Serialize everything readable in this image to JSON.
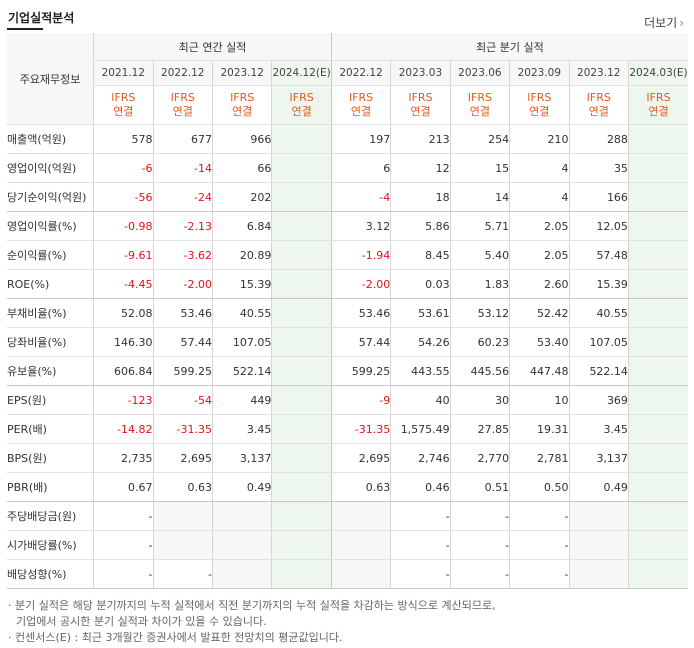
{
  "header": {
    "title": "기업실적분석",
    "more": "더보기",
    "more_arrow": "›"
  },
  "table": {
    "row_header": "주요재무정보",
    "sections": {
      "annual": "최근 연간 실적",
      "quarter": "최근 분기 실적"
    },
    "periods": [
      "2021.12",
      "2022.12",
      "2023.12",
      "2024.12(E)",
      "2022.12",
      "2023.03",
      "2023.06",
      "2023.09",
      "2023.12",
      "2024.03(E)"
    ],
    "ifrs": {
      "top": "IFRS",
      "bottom": "연결"
    },
    "rows": [
      {
        "label": "매출액(억원)",
        "values": [
          "578",
          "677",
          "966",
          "",
          "197",
          "213",
          "254",
          "210",
          "288",
          ""
        ]
      },
      {
        "label": "영업이익(억원)",
        "values": [
          "-6",
          "-14",
          "66",
          "",
          "6",
          "12",
          "15",
          "4",
          "35",
          ""
        ]
      },
      {
        "label": "당기순이익(억원)",
        "values": [
          "-56",
          "-24",
          "202",
          "",
          "-4",
          "18",
          "14",
          "4",
          "166",
          ""
        ]
      },
      {
        "label": "영업이익률(%)",
        "values": [
          "-0.98",
          "-2.13",
          "6.84",
          "",
          "3.12",
          "5.86",
          "5.71",
          "2.05",
          "12.05",
          ""
        ]
      },
      {
        "label": "순이익률(%)",
        "values": [
          "-9.61",
          "-3.62",
          "20.89",
          "",
          "-1.94",
          "8.45",
          "5.40",
          "2.05",
          "57.48",
          ""
        ]
      },
      {
        "label": "ROE(%)",
        "values": [
          "-4.45",
          "-2.00",
          "15.39",
          "",
          "-2.00",
          "0.03",
          "1.83",
          "2.60",
          "15.39",
          ""
        ]
      },
      {
        "label": "부채비율(%)",
        "values": [
          "52.08",
          "53.46",
          "40.55",
          "",
          "53.46",
          "53.61",
          "53.12",
          "52.42",
          "40.55",
          ""
        ]
      },
      {
        "label": "당좌비율(%)",
        "values": [
          "146.30",
          "57.44",
          "107.05",
          "",
          "57.44",
          "54.26",
          "60.23",
          "53.40",
          "107.05",
          ""
        ]
      },
      {
        "label": "유보율(%)",
        "values": [
          "606.84",
          "599.25",
          "522.14",
          "",
          "599.25",
          "443.55",
          "445.56",
          "447.48",
          "522.14",
          ""
        ]
      },
      {
        "label": "EPS(원)",
        "values": [
          "-123",
          "-54",
          "449",
          "",
          "-9",
          "40",
          "30",
          "10",
          "369",
          ""
        ]
      },
      {
        "label": "PER(배)",
        "values": [
          "-14.82",
          "-31.35",
          "3.45",
          "",
          "-31.35",
          "1,575.49",
          "27.85",
          "19.31",
          "3.45",
          ""
        ]
      },
      {
        "label": "BPS(원)",
        "values": [
          "2,735",
          "2,695",
          "3,137",
          "",
          "2,695",
          "2,746",
          "2,770",
          "2,781",
          "3,137",
          ""
        ]
      },
      {
        "label": "PBR(배)",
        "values": [
          "0.67",
          "0.63",
          "0.49",
          "",
          "0.63",
          "0.46",
          "0.51",
          "0.50",
          "0.49",
          ""
        ]
      },
      {
        "label": "주당배당금(원)",
        "values": [
          "-",
          "",
          "",
          "",
          "",
          "-",
          "-",
          "-",
          "",
          ""
        ]
      },
      {
        "label": "시가배당률(%)",
        "values": [
          "-",
          "",
          "",
          "",
          "",
          "-",
          "-",
          "-",
          "",
          ""
        ]
      },
      {
        "label": "배당성향(%)",
        "values": [
          "-",
          "-",
          "",
          "",
          "",
          "-",
          "-",
          "-",
          "",
          ""
        ]
      }
    ]
  },
  "notes": [
    "· 분기 실적은 해당 분기까지의 누적 실적에서 직전 분기까지의 누적 실적을 차감하는 방식으로 계산되므로,",
    "  기업에서 공시한 분기 실적과 차이가 있을 수 있습니다.",
    "· 컨센서스(E) : 최근 3개월간 증권사에서 발표한 전망치의 평균값입니다."
  ]
}
